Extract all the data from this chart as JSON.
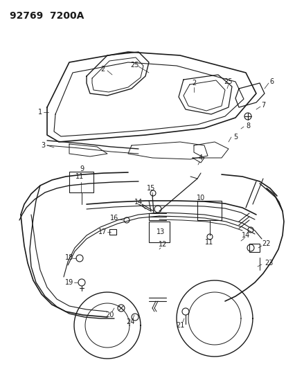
{
  "title_text": "92769  7200A",
  "background_color": "#ffffff",
  "line_color": "#1a1a1a",
  "fig_width": 4.14,
  "fig_height": 5.33,
  "dpi": 100
}
